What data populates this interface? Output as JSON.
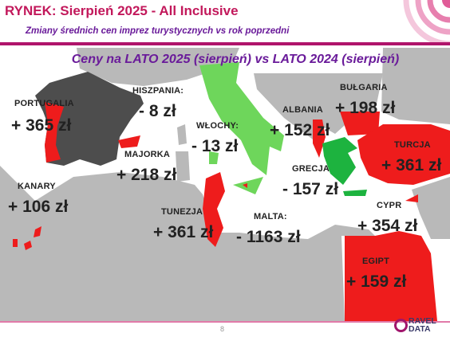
{
  "header": {
    "title": "RYNEK: Sierpień 2025 - All Inclusive",
    "subtitle": "Zmiany średnich cen imprez turystycznych vs rok poprzedni"
  },
  "map_title": "Ceny na LATO 2025 (sierpień) vs  LATO 2024 (sierpień)",
  "colors": {
    "increase": "#ee1c1c",
    "decrease": "#1db33f",
    "decrease_light": "#6ed65b",
    "no_data_land": "#b9b9b9",
    "dark_region": "#4d4d4d",
    "sea": "#ffffff",
    "accent": "#c2185b"
  },
  "destinations": [
    {
      "id": "portugalia",
      "country": "PORTUGALIA",
      "value": "+ 365 zł",
      "trend": "increase"
    },
    {
      "id": "hiszpania",
      "country": "HISZPANIA:",
      "value": "- 8 zł",
      "trend": "decrease"
    },
    {
      "id": "wlochy",
      "country": "WŁOCHY:",
      "value": "- 13 zł",
      "trend": "decrease"
    },
    {
      "id": "albania",
      "country": "ALBANIA",
      "value": "+ 152 zł",
      "trend": "increase"
    },
    {
      "id": "bulgaria",
      "country": "BUŁGARIA",
      "value": "+ 198 zł",
      "trend": "increase"
    },
    {
      "id": "turcja",
      "country": "TURCJA",
      "value": "+ 361 zł",
      "trend": "increase"
    },
    {
      "id": "majorka",
      "country": "MAJORKA",
      "value": "+ 218 zł",
      "trend": "increase"
    },
    {
      "id": "grecja",
      "country": "GRECJA",
      "value": "- 157 zł",
      "trend": "decrease"
    },
    {
      "id": "kanary",
      "country": "KANARY",
      "value": "+ 106 zł",
      "trend": "increase"
    },
    {
      "id": "tunezja",
      "country": "TUNEZJA",
      "value": "+ 361 zł",
      "trend": "increase"
    },
    {
      "id": "malta",
      "country": "MALTA:",
      "value": "- 1163 zł",
      "trend": "decrease"
    },
    {
      "id": "cypr",
      "country": "CYPR",
      "value": "+ 354 zł",
      "trend": "increase"
    },
    {
      "id": "egipt",
      "country": "EGIPT",
      "value": "+ 159 zł",
      "trend": "increase"
    }
  ],
  "footer": {
    "page_number": "8",
    "logo_text_line1": "RAVEL",
    "logo_text_line2": "DATA"
  }
}
